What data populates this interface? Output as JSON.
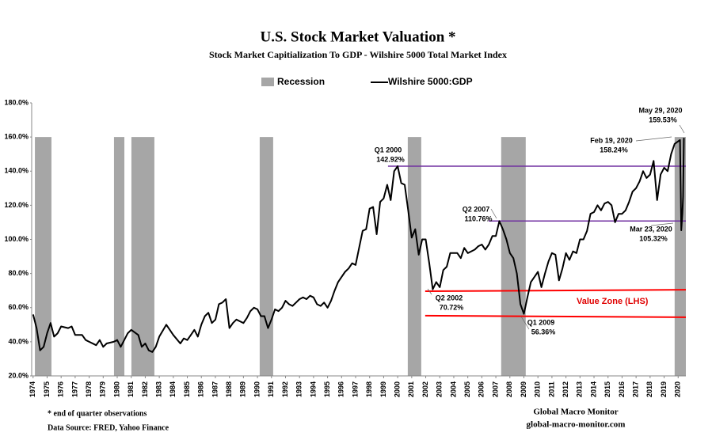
{
  "chart_data": {
    "type": "line",
    "title": "U.S. Stock Market Valuation *",
    "subtitle": "Stock Market  Capitialization  To GDP -  Wilshire  5000 Total Market Index",
    "xlim": [
      1973.9,
      2020.55
    ],
    "xticks": [
      1974,
      1975,
      1976,
      1977,
      1978,
      1979,
      1980,
      1981,
      1982,
      1983,
      1984,
      1985,
      1986,
      1987,
      1988,
      1989,
      1990,
      1991,
      1992,
      1993,
      1994,
      1995,
      1996,
      1997,
      1998,
      1999,
      2000,
      2001,
      2002,
      2003,
      2004,
      2005,
      2006,
      2007,
      2008,
      2009,
      2010,
      2011,
      2012,
      2013,
      2014,
      2015,
      2016,
      2017,
      2018,
      2019,
      2020
    ],
    "ylim": [
      20,
      180
    ],
    "yticks": [
      {
        "value": 20,
        "label": "20.0%"
      },
      {
        "value": 40,
        "label": "40.0%"
      },
      {
        "value": 60,
        "label": "60.0%"
      },
      {
        "value": 80,
        "label": "80.0%"
      },
      {
        "value": 100,
        "label": "100.0%"
      },
      {
        "value": 120,
        "label": "120.0%"
      },
      {
        "value": 140,
        "label": "140.0%"
      },
      {
        "value": 160,
        "label": "160.0%"
      },
      {
        "value": 180,
        "label": "180.0%"
      }
    ],
    "recessions": {
      "name": "Recession",
      "color": "#a6a6a6",
      "level": 160,
      "periods": [
        [
          1974.13,
          1975.31
        ],
        [
          1979.77,
          1980.51
        ],
        [
          1981.01,
          1982.65
        ],
        [
          1990.16,
          1991.12
        ],
        [
          2000.72,
          2001.68
        ],
        [
          2007.38,
          2009.13
        ],
        [
          2019.75,
          2020.55
        ]
      ]
    },
    "series": [
      {
        "name": "Wilshire 5000:GDP",
        "color": "#000000",
        "x": [
          1974,
          1974.25,
          1974.5,
          1974.75,
          1975,
          1975.25,
          1975.5,
          1975.75,
          1976,
          1976.5,
          1976.75,
          1977,
          1977.5,
          1977.75,
          1978,
          1978.5,
          1978.75,
          1979,
          1979.25,
          1979.75,
          1980,
          1980.25,
          1980.5,
          1980.75,
          1981,
          1981.5,
          1981.75,
          1982,
          1982.25,
          1982.5,
          1982.75,
          1983,
          1983.5,
          1983.75,
          1984,
          1984.5,
          1984.75,
          1985,
          1985.25,
          1985.5,
          1985.75,
          1986,
          1986.25,
          1986.5,
          1986.75,
          1987,
          1987.25,
          1987.5,
          1987.75,
          1988,
          1988.25,
          1988.5,
          1988.75,
          1989,
          1989.25,
          1989.5,
          1989.75,
          1990,
          1990.25,
          1990.5,
          1990.75,
          1991,
          1991.25,
          1991.5,
          1991.75,
          1992,
          1992.25,
          1992.5,
          1992.75,
          1993,
          1993.25,
          1993.5,
          1993.75,
          1994,
          1994.25,
          1994.5,
          1994.75,
          1995,
          1995.25,
          1995.5,
          1995.75,
          1996,
          1996.25,
          1996.5,
          1996.75,
          1997,
          1997.25,
          1997.5,
          1997.75,
          1998,
          1998.25,
          1998.5,
          1998.75,
          1999,
          1999.25,
          1999.5,
          1999.75,
          2000,
          2000.25,
          2000.5,
          2000.75,
          2001,
          2001.25,
          2001.5,
          2001.75,
          2002,
          2002.25,
          2002.5,
          2002.75,
          2003,
          2003.25,
          2003.5,
          2003.75,
          2004,
          2004.25,
          2004.5,
          2004.75,
          2005,
          2005.25,
          2005.5,
          2005.75,
          2006,
          2006.25,
          2006.5,
          2006.75,
          2007,
          2007.25,
          2007.5,
          2007.75,
          2008,
          2008.25,
          2008.5,
          2008.75,
          2009,
          2009.25,
          2009.5,
          2009.75,
          2010,
          2010.25,
          2010.5,
          2010.75,
          2011,
          2011.25,
          2011.5,
          2011.75,
          2012,
          2012.25,
          2012.5,
          2012.75,
          2013,
          2013.25,
          2013.5,
          2013.75,
          2014,
          2014.25,
          2014.5,
          2014.75,
          2015,
          2015.25,
          2015.5,
          2015.75,
          2016,
          2016.25,
          2016.5,
          2016.75,
          2017,
          2017.25,
          2017.5,
          2017.75,
          2018,
          2018.25,
          2018.5,
          2018.75,
          2019,
          2019.25,
          2019.5,
          2019.75,
          2020.13,
          2020.22,
          2020.3,
          2020.35,
          2020.41
        ],
        "values": [
          56,
          48,
          35,
          37,
          45,
          51,
          43,
          45,
          49,
          48,
          49,
          44,
          44,
          41,
          40,
          38,
          41,
          37,
          39,
          40,
          41,
          37,
          41,
          45,
          47,
          44,
          37,
          39,
          35,
          34,
          37,
          43,
          50,
          47,
          44,
          39,
          42,
          41,
          44,
          47,
          43,
          50,
          55,
          57,
          51,
          53,
          62,
          63,
          65,
          48,
          51,
          53,
          52,
          51,
          54,
          58,
          60,
          59,
          55,
          55,
          48,
          53,
          59,
          58,
          60,
          64,
          62,
          61,
          63,
          65,
          66,
          65,
          67,
          66,
          62,
          61,
          63,
          60,
          64,
          70,
          75,
          78,
          81,
          83,
          86,
          85,
          95,
          105,
          106,
          118,
          119,
          103,
          122,
          124,
          132,
          123,
          140,
          142.92,
          133,
          132,
          117,
          101,
          106,
          91,
          100,
          100,
          86,
          70.72,
          75,
          72,
          82,
          84,
          92,
          92,
          92,
          89,
          95,
          92,
          93,
          94,
          96,
          97,
          94,
          97,
          102,
          102,
          110.76,
          106,
          100,
          92,
          89,
          80,
          62,
          56.36,
          66,
          75,
          78,
          81,
          72,
          80,
          87,
          92,
          91,
          76,
          83,
          92,
          88,
          93,
          92,
          100,
          100,
          105,
          115,
          116,
          120,
          117,
          121,
          122,
          120,
          110,
          115,
          115,
          117,
          122,
          128,
          130,
          134,
          140,
          136,
          138,
          146,
          123,
          138,
          142,
          140,
          150,
          156,
          158.24,
          105.32,
          115,
          125,
          159.53
        ]
      }
    ],
    "reference_lines": [
      {
        "color": "#7030a0",
        "x": [
          1999.31,
          2020.55
        ],
        "values": [
          142.92,
          142.92
        ]
      },
      {
        "color": "#7030a0",
        "x": [
          2006.48,
          2020.55
        ],
        "values": [
          110.76,
          110.76
        ]
      },
      {
        "color": "#ff0000",
        "x": [
          2001.96,
          2020.55
        ],
        "values": [
          69.6,
          70.5
        ]
      },
      {
        "color": "#ff0000",
        "x": [
          2001.96,
          2020.55
        ],
        "values": [
          55.3,
          54.4
        ]
      }
    ],
    "zone_label": "Value Zone (LHS)",
    "annotations": [
      {
        "title": "Q1 2000",
        "label": "142.92%"
      },
      {
        "title": "Q2 2007",
        "label": "110.76%"
      },
      {
        "title": "Q2 2002",
        "label": "70.72%"
      },
      {
        "title": "Q1 2009",
        "label": "56.36%"
      },
      {
        "title": "Feb 19, 2020",
        "label": "158.24%"
      },
      {
        "title": "May 29, 2020",
        "label": "159.53%"
      },
      {
        "title": "Mar 23, 2020",
        "label": "105.32%"
      }
    ],
    "footnote": "*   end of quarter  observations",
    "source": "Data Source:  FRED, Yahoo Finance",
    "brand": "Global Macro Monitor",
    "website": "global-macro-monitor.com"
  }
}
